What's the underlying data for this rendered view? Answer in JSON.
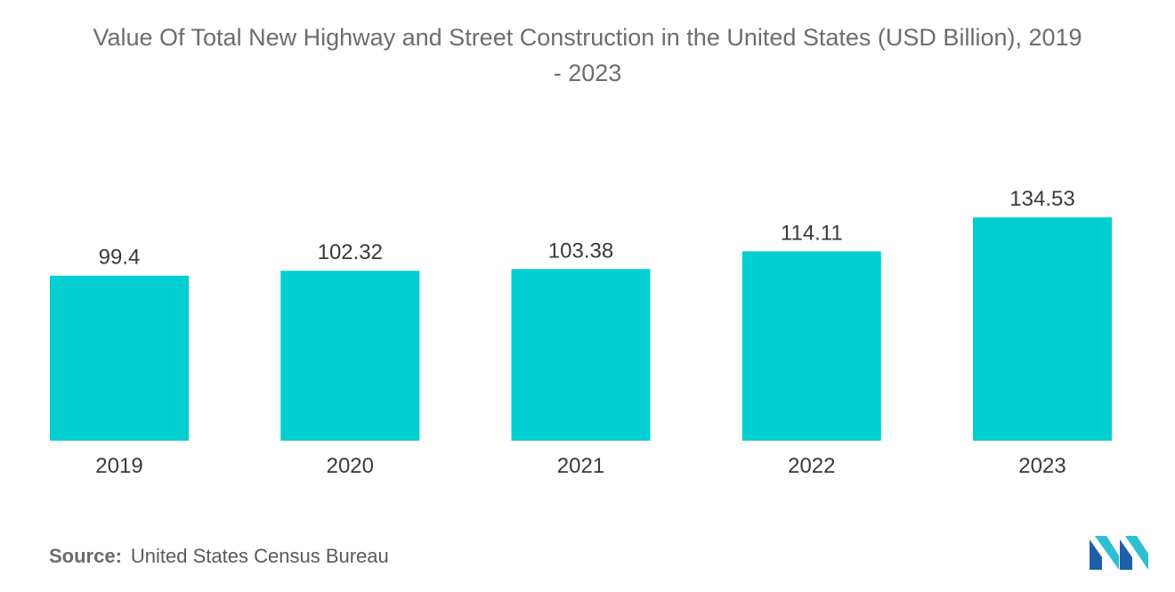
{
  "chart_data": {
    "type": "bar",
    "title_lines": [
      "Value Of Total New Highway and Street Construction in the United States (USD Billion), 2019",
      "- 2023"
    ],
    "categories": [
      "2019",
      "2020",
      "2021",
      "2022",
      "2023"
    ],
    "values": [
      99.4,
      102.32,
      103.38,
      114.11,
      134.53
    ],
    "value_labels": [
      "99.4",
      "102.32",
      "103.38",
      "114.11",
      "134.53"
    ],
    "xlabel": "",
    "ylabel": "",
    "ylim": [
      0,
      140
    ],
    "grid": false,
    "legend": "none",
    "bar_color": "#00ced1"
  },
  "source": {
    "label": "Source:",
    "text": "United States Census Bureau"
  },
  "colors": {
    "title": "#6d6d6d",
    "text": "#3a3a3a",
    "logo_dark": "#1f5fa8",
    "logo_light": "#2bbfd0"
  },
  "logo": {
    "icon": "mordor-intelligence-logo"
  }
}
